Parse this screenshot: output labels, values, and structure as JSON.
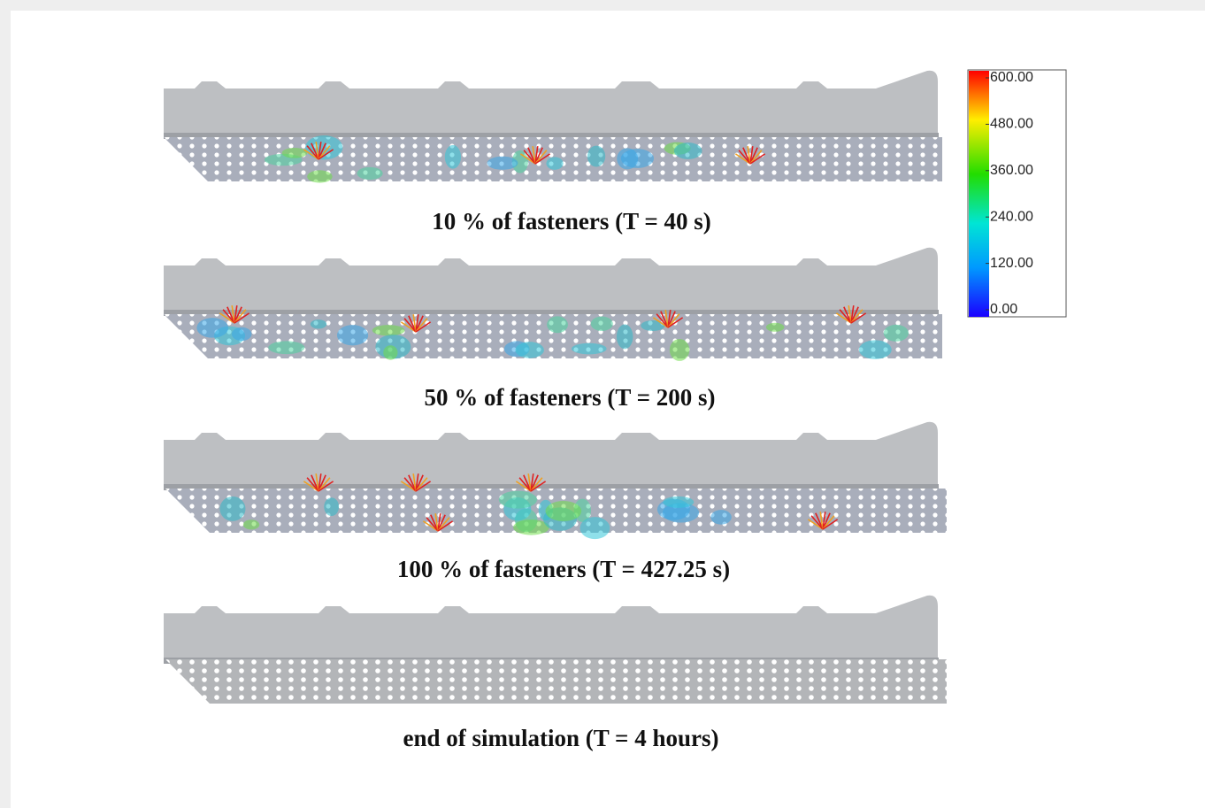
{
  "captions": [
    "10 % of fasteners (T = 40 s)",
    "50 % of fasteners (T = 200 s)",
    "100 % of fasteners (T = 427.25 s)",
    "end of simulation (T = 4 hours)"
  ],
  "colorbar": {
    "ticks": [
      {
        "value": 600,
        "label": "600.00"
      },
      {
        "value": 480,
        "label": "480.00"
      },
      {
        "value": 360,
        "label": "360.00"
      },
      {
        "value": 240,
        "label": "240.00"
      },
      {
        "value": 120,
        "label": "120.00"
      },
      {
        "value": 0,
        "label": "0.00"
      }
    ]
  }
}
